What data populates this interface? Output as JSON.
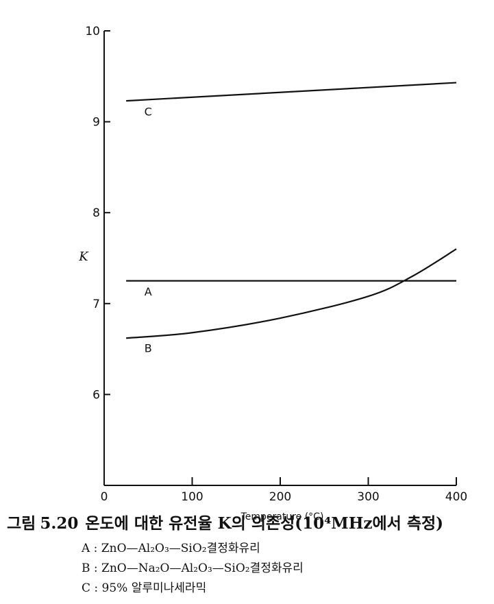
{
  "chart_data": {
    "type": "line",
    "title": "",
    "xlabel": "Temperature (°C)",
    "ylabel": "K",
    "xlim": [
      0,
      400
    ],
    "ylim": [
      5,
      10
    ],
    "x_ticks": [
      0,
      100,
      200,
      300,
      400
    ],
    "y_ticks": [
      6,
      7,
      8,
      9,
      10
    ],
    "x_tick_labels": [
      "0",
      "100",
      "200",
      "300",
      "400"
    ],
    "y_tick_labels": [
      "6",
      "7",
      "8",
      "9",
      "10"
    ],
    "grid": false,
    "series": [
      {
        "name": "A",
        "x": [
          25,
          400
        ],
        "y": [
          7.25,
          7.25
        ]
      },
      {
        "name": "B",
        "x": [
          25,
          100,
          200,
          300,
          350,
          400
        ],
        "y": [
          6.62,
          6.68,
          6.84,
          7.08,
          7.3,
          7.6
        ]
      },
      {
        "name": "C",
        "x": [
          25,
          400
        ],
        "y": [
          9.23,
          9.43
        ]
      }
    ],
    "line_labels": [
      {
        "series": "C",
        "text": "C",
        "x": 50,
        "y": 9.12
      },
      {
        "series": "A",
        "text": "A",
        "x": 50,
        "y": 7.14
      },
      {
        "series": "B",
        "text": "B",
        "x": 50,
        "y": 6.52
      }
    ]
  },
  "caption": {
    "prefix": "그림",
    "number": "5.20",
    "text": "온도에 대한 유전율 K의 의존성(10⁴MHz에서 측정)"
  },
  "legend": [
    "A : ZnO—Al₂O₃—SiO₂결정화유리",
    "B : ZnO—Na₂O—Al₂O₃—SiO₂결정화유리",
    "C : 95% 알루미나세라믹"
  ],
  "colors": {
    "ink": "#111111",
    "background": "#ffffff"
  }
}
